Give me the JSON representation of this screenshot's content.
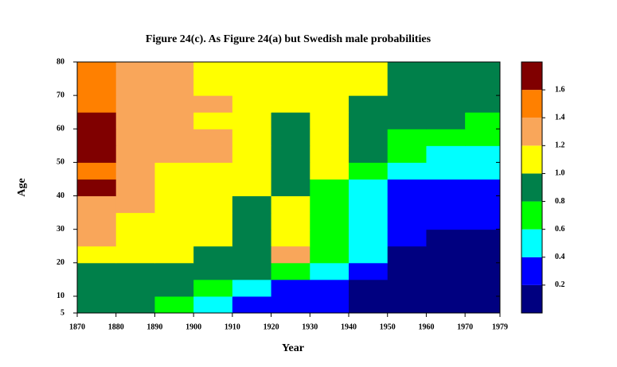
{
  "chart_data": {
    "type": "heatmap",
    "title": "Figure 24(c). As Figure 24(a) but Swedish male probabilities",
    "x_label": "Year",
    "y_label": "Age",
    "x_edges": [
      1870,
      1880,
      1890,
      1900,
      1910,
      1920,
      1930,
      1940,
      1950,
      1960,
      1970,
      1979
    ],
    "y_edges": [
      5,
      10,
      15,
      20,
      25,
      30,
      35,
      40,
      45,
      50,
      55,
      60,
      65,
      70,
      75,
      80
    ],
    "z": [
      [
        0.9,
        0.9,
        0.7,
        0.5,
        0.3,
        0.3,
        0.3,
        0.1,
        0.1,
        0.1,
        0.1
      ],
      [
        0.9,
        0.9,
        0.9,
        0.7,
        0.5,
        0.3,
        0.3,
        0.1,
        0.1,
        0.1,
        0.1
      ],
      [
        0.9,
        0.9,
        0.9,
        0.9,
        0.9,
        0.7,
        0.5,
        0.3,
        0.1,
        0.1,
        0.1
      ],
      [
        1.1,
        1.1,
        1.1,
        0.9,
        0.9,
        1.3,
        0.7,
        0.5,
        0.1,
        0.1,
        0.1
      ],
      [
        1.3,
        1.1,
        1.1,
        1.1,
        0.9,
        1.1,
        0.7,
        0.5,
        0.3,
        0.1,
        0.1
      ],
      [
        1.3,
        1.1,
        1.1,
        1.1,
        0.9,
        1.1,
        0.7,
        0.5,
        0.3,
        0.3,
        0.3
      ],
      [
        1.3,
        1.3,
        1.1,
        1.1,
        0.9,
        1.1,
        0.7,
        0.5,
        0.3,
        0.3,
        0.3
      ],
      [
        1.7,
        1.3,
        1.1,
        1.1,
        1.1,
        0.9,
        0.7,
        0.5,
        0.3,
        0.3,
        0.3
      ],
      [
        1.5,
        1.3,
        1.1,
        1.1,
        1.1,
        0.9,
        1.1,
        0.7,
        0.5,
        0.5,
        0.5
      ],
      [
        1.7,
        1.3,
        1.3,
        1.3,
        1.1,
        0.9,
        1.1,
        0.9,
        0.7,
        0.5,
        0.5
      ],
      [
        1.7,
        1.3,
        1.3,
        1.3,
        1.1,
        0.9,
        1.1,
        0.9,
        0.7,
        0.7,
        0.7
      ],
      [
        1.7,
        1.3,
        1.3,
        1.1,
        1.1,
        0.9,
        1.1,
        0.9,
        0.9,
        0.9,
        0.7
      ],
      [
        1.5,
        1.3,
        1.3,
        1.3,
        1.1,
        1.1,
        1.1,
        0.9,
        0.9,
        0.9,
        0.9
      ],
      [
        1.5,
        1.3,
        1.3,
        1.1,
        1.1,
        1.1,
        1.1,
        1.1,
        0.9,
        0.9,
        0.9
      ],
      [
        1.5,
        1.3,
        1.3,
        1.1,
        1.1,
        1.1,
        1.1,
        1.1,
        0.9,
        0.9,
        0.9
      ]
    ],
    "xlim": [
      1870,
      1979
    ],
    "xticks": [
      1870,
      1880,
      1890,
      1900,
      1910,
      1920,
      1930,
      1940,
      1950,
      1960,
      1970,
      1979
    ],
    "ylim": [
      5,
      80
    ],
    "yticks": [
      5,
      10,
      20,
      30,
      40,
      50,
      60,
      70,
      80
    ],
    "colors": [
      "#000080",
      "#0000ff",
      "#00ffff",
      "#00ff00",
      "#00804a",
      "#ffff00",
      "#f9a65a",
      "#ff8000",
      "#800000"
    ],
    "colorbar_lim": [
      0,
      1.8
    ],
    "colorbar_ticks": [
      0.2,
      0.4,
      0.6,
      0.8,
      {
        "value": 1,
        "label": "1.0"
      },
      1.2,
      1.4,
      1.6
    ]
  }
}
